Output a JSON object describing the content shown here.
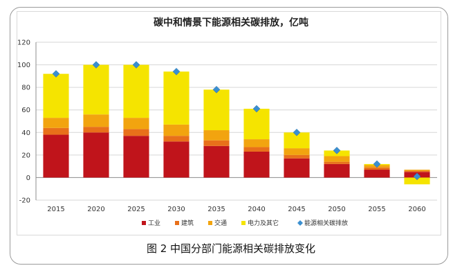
{
  "caption": "图 2  中国分部门能源相关碳排放变化",
  "chart_data": {
    "type": "bar",
    "title": "碳中和情景下能源相关碳排放，亿吨",
    "categories": [
      "2015",
      "2020",
      "2025",
      "2030",
      "2035",
      "2040",
      "2045",
      "2050",
      "2055",
      "2060"
    ],
    "ylim": [
      -20,
      120
    ],
    "yticks": [
      -20,
      0,
      20,
      40,
      60,
      80,
      100,
      120
    ],
    "grid": true,
    "legend_position": "bottom",
    "stacked": true,
    "series": [
      {
        "name": "工业",
        "color": "#c0141b",
        "values": [
          38,
          40,
          37,
          32,
          28,
          23,
          17,
          12,
          7,
          5
        ]
      },
      {
        "name": "建筑",
        "color": "#e8701a",
        "values": [
          6,
          5,
          6,
          5,
          5,
          4,
          3,
          2,
          2,
          1
        ]
      },
      {
        "name": "交通",
        "color": "#f2a40f",
        "values": [
          9,
          11,
          10,
          10,
          9,
          7,
          6,
          5,
          2,
          1
        ]
      },
      {
        "name": "电力及其它",
        "color": "#f5e400",
        "values": [
          39,
          44,
          47,
          47,
          36,
          27,
          14,
          5,
          1,
          -6
        ]
      }
    ],
    "line_series": {
      "name": "能源相关碳排放",
      "color": "#3a8fd0",
      "marker": "diamond",
      "values": [
        92,
        100,
        100,
        94,
        78,
        61,
        40,
        24,
        12,
        1
      ]
    }
  }
}
